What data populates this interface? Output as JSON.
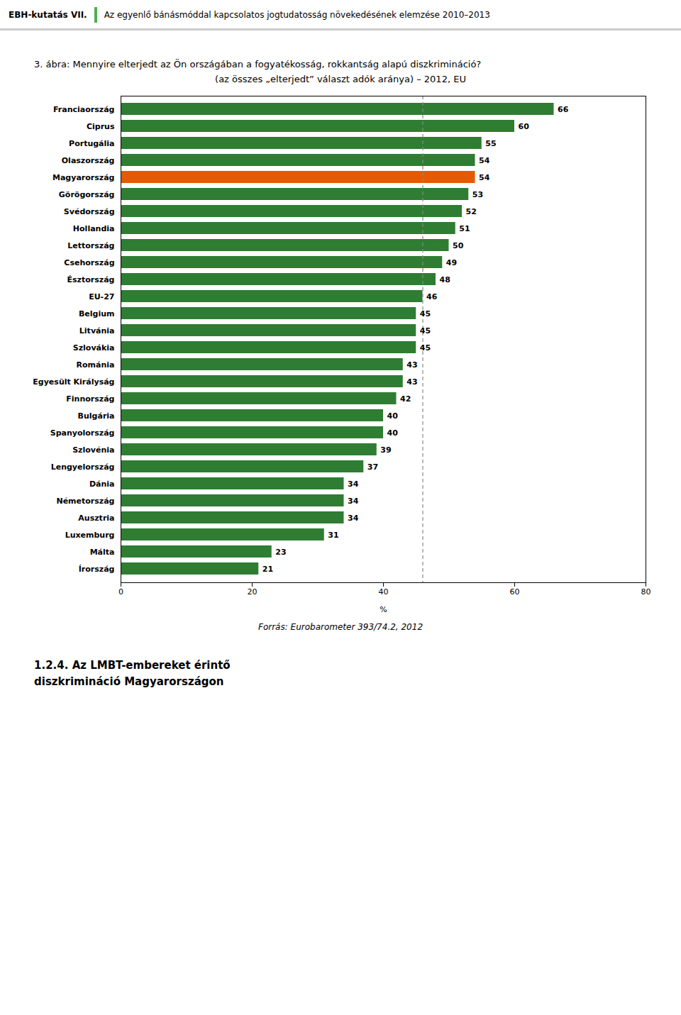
{
  "chart_data": {
    "type": "bar",
    "orientation": "horizontal",
    "header": "EBH-kutatás VII.",
    "header_text": "Az egyenlő bánásmóddal kapcsolatos jogtudatosság növekedésének elemzése 2010–2013",
    "title": "3. ábra: Mennyire elterjedt az Ön országában a fogyatékosság, rokkantság alapú diszkrimináció?",
    "subtitle": "(az összes „elterjedt” választ adók aránya) – 2012, EU",
    "source": "Forrás: Eurobarometer 393/74.2, 2012",
    "section_heading": [
      "1.2.4. Az LMBT-embereket érintő",
      "diszkrimináció Magyarországon"
    ],
    "xlabel": "%",
    "categories": [
      "Franciaország",
      "Ciprus",
      "Portugália",
      "Olaszország",
      "Magyarország",
      "Görögország",
      "Svédország",
      "Hollandia",
      "Lettország",
      "Csehország",
      "Észtország",
      "EU-27",
      "Belgium",
      "Litvánia",
      "Szlovákia",
      "Románia",
      "Egyesült Királyság",
      "Finnország",
      "Bulgária",
      "Spanyolország",
      "Szlovénia",
      "Lengyelország",
      "Dánia",
      "Németország",
      "Ausztria",
      "Luxemburg",
      "Málta",
      "Írország"
    ],
    "values": [
      66,
      60,
      55,
      54,
      54,
      53,
      52,
      51,
      50,
      49,
      48,
      46,
      45,
      45,
      45,
      43,
      43,
      42,
      40,
      40,
      39,
      37,
      34,
      34,
      34,
      31,
      23,
      21
    ],
    "colors": [
      "#2e7d32",
      "#2e7d32",
      "#2e7d32",
      "#2e7d32",
      "#e55a00",
      "#2e7d32",
      "#2e7d32",
      "#2e7d32",
      "#2e7d32",
      "#2e7d32",
      "#2e7d32",
      "#2e7d32",
      "#2e7d32",
      "#2e7d32",
      "#2e7d32",
      "#2e7d32",
      "#2e7d32",
      "#2e7d32",
      "#2e7d32",
      "#2e7d32",
      "#2e7d32",
      "#2e7d32",
      "#2e7d32",
      "#2e7d32",
      "#2e7d32",
      "#2e7d32",
      "#2e7d32",
      "#2e7d32"
    ],
    "reference_line": 46,
    "xlim": [
      0,
      80
    ],
    "xticks": [
      0,
      20,
      40,
      60,
      80
    ],
    "data_labels": true,
    "grid": false
  }
}
